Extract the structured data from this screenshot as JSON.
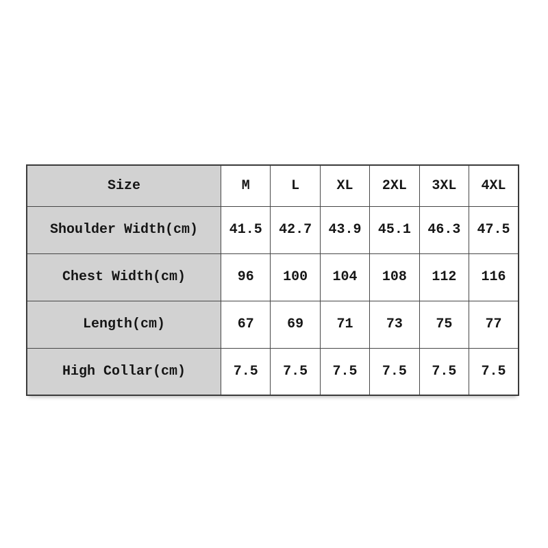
{
  "chart_data": {
    "type": "table",
    "header": {
      "label": "Size",
      "columns": [
        "M",
        "L",
        "XL",
        "2XL",
        "3XL",
        "4XL"
      ]
    },
    "rows": [
      {
        "label": "Shoulder Width(cm)",
        "values": [
          "41.5",
          "42.7",
          "43.9",
          "45.1",
          "46.3",
          "47.5"
        ]
      },
      {
        "label": "Chest Width(cm)",
        "values": [
          "96",
          "100",
          "104",
          "108",
          "112",
          "116"
        ]
      },
      {
        "label": "Length(cm)",
        "values": [
          "67",
          "69",
          "71",
          "73",
          "75",
          "77"
        ]
      },
      {
        "label": "High Collar(cm)",
        "values": [
          "7.5",
          "7.5",
          "7.5",
          "7.5",
          "7.5",
          "7.5"
        ]
      }
    ],
    "colors": {
      "label_column_bg": "#d2d2d2",
      "data_cell_bg": "#ffffff",
      "grid_line": "#464646",
      "text": "#161616",
      "page_bg": "#ffffff"
    }
  }
}
